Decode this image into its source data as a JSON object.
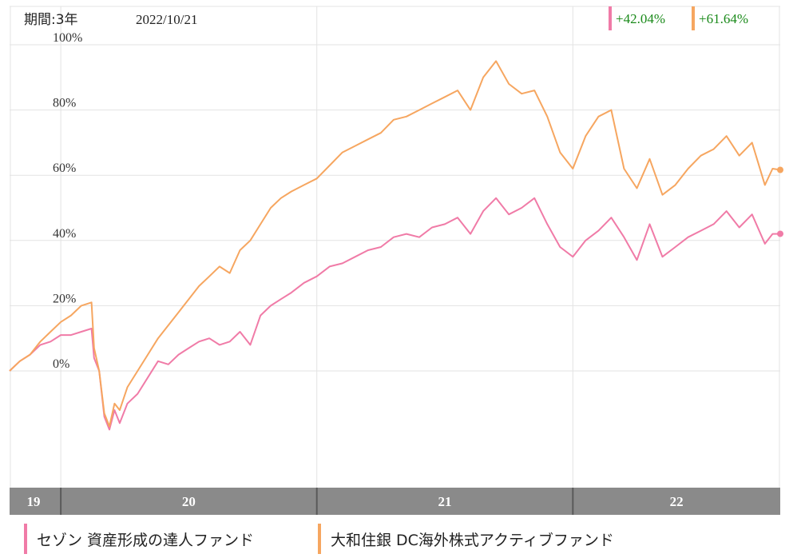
{
  "header": {
    "period_label": "期間:3年",
    "date": "2022/10/21"
  },
  "returns": [
    {
      "value": "+42.04%",
      "color": "#f07ba7"
    },
    {
      "value": "+61.64%",
      "color": "#f6a660"
    }
  ],
  "chart_data": {
    "type": "line",
    "title": "",
    "xlabel": "",
    "ylabel": "",
    "ylim": [
      -35,
      100
    ],
    "y_ticks": [
      "100%",
      "80%",
      "60%",
      "40%",
      "20%",
      "0%"
    ],
    "y_tick_values": [
      100,
      80,
      60,
      40,
      20,
      0
    ],
    "x_range": [
      2019.8,
      2022.81
    ],
    "year_labels": [
      "19",
      "20",
      "21",
      "22"
    ],
    "year_boundaries": [
      2020.0,
      2021.0,
      2022.0
    ],
    "grid": true,
    "legend_position": "bottom",
    "series": [
      {
        "name": "セゾン 資産形成の達人ファンド",
        "color": "#f07ba7",
        "x": [
          2019.8,
          2019.84,
          2019.88,
          2019.92,
          2019.96,
          2020.0,
          2020.04,
          2020.08,
          2020.12,
          2020.13,
          2020.15,
          2020.17,
          2020.19,
          2020.21,
          2020.23,
          2020.26,
          2020.3,
          2020.34,
          2020.38,
          2020.42,
          2020.46,
          2020.5,
          2020.54,
          2020.58,
          2020.62,
          2020.66,
          2020.7,
          2020.74,
          2020.78,
          2020.82,
          2020.86,
          2020.9,
          2020.95,
          2021.0,
          2021.05,
          2021.1,
          2021.15,
          2021.2,
          2021.25,
          2021.3,
          2021.35,
          2021.4,
          2021.45,
          2021.5,
          2021.55,
          2021.6,
          2021.65,
          2021.7,
          2021.75,
          2021.8,
          2021.85,
          2021.9,
          2021.95,
          2022.0,
          2022.05,
          2022.1,
          2022.15,
          2022.2,
          2022.25,
          2022.3,
          2022.35,
          2022.4,
          2022.45,
          2022.5,
          2022.55,
          2022.6,
          2022.65,
          2022.7,
          2022.75,
          2022.78,
          2022.81
        ],
        "values": [
          0,
          3,
          5,
          8,
          9,
          11,
          11,
          12,
          13,
          4,
          0,
          -14,
          -18,
          -12,
          -16,
          -10,
          -7,
          -2,
          3,
          2,
          5,
          7,
          9,
          10,
          8,
          9,
          12,
          8,
          17,
          20,
          22,
          24,
          27,
          29,
          32,
          33,
          35,
          37,
          38,
          41,
          42,
          41,
          44,
          45,
          47,
          42,
          49,
          53,
          48,
          50,
          53,
          45,
          38,
          35,
          40,
          43,
          47,
          41,
          34,
          45,
          35,
          38,
          41,
          43,
          45,
          49,
          44,
          48,
          39,
          42,
          42.04
        ]
      },
      {
        "name": "大和住銀 DC海外株式アクティブファンド",
        "color": "#f6a660",
        "x": [
          2019.8,
          2019.84,
          2019.88,
          2019.92,
          2019.96,
          2020.0,
          2020.04,
          2020.08,
          2020.12,
          2020.13,
          2020.15,
          2020.17,
          2020.19,
          2020.21,
          2020.23,
          2020.26,
          2020.3,
          2020.34,
          2020.38,
          2020.42,
          2020.46,
          2020.5,
          2020.54,
          2020.58,
          2020.62,
          2020.66,
          2020.7,
          2020.74,
          2020.78,
          2020.82,
          2020.86,
          2020.9,
          2020.95,
          2021.0,
          2021.05,
          2021.1,
          2021.15,
          2021.2,
          2021.25,
          2021.3,
          2021.35,
          2021.4,
          2021.45,
          2021.5,
          2021.55,
          2021.6,
          2021.65,
          2021.7,
          2021.75,
          2021.8,
          2021.85,
          2021.9,
          2021.95,
          2022.0,
          2022.05,
          2022.1,
          2022.15,
          2022.2,
          2022.25,
          2022.3,
          2022.35,
          2022.4,
          2022.45,
          2022.5,
          2022.55,
          2022.6,
          2022.65,
          2022.7,
          2022.75,
          2022.78,
          2022.81
        ],
        "values": [
          0,
          3,
          5,
          9,
          12,
          15,
          17,
          20,
          21,
          7,
          0,
          -13,
          -17,
          -10,
          -12,
          -5,
          0,
          5,
          10,
          14,
          18,
          22,
          26,
          29,
          32,
          30,
          37,
          40,
          45,
          50,
          53,
          55,
          57,
          59,
          63,
          67,
          69,
          71,
          73,
          77,
          78,
          80,
          82,
          84,
          86,
          80,
          90,
          95,
          88,
          85,
          86,
          78,
          67,
          62,
          72,
          78,
          80,
          62,
          56,
          65,
          54,
          57,
          62,
          66,
          68,
          72,
          66,
          70,
          57,
          62,
          61.64
        ]
      }
    ]
  }
}
